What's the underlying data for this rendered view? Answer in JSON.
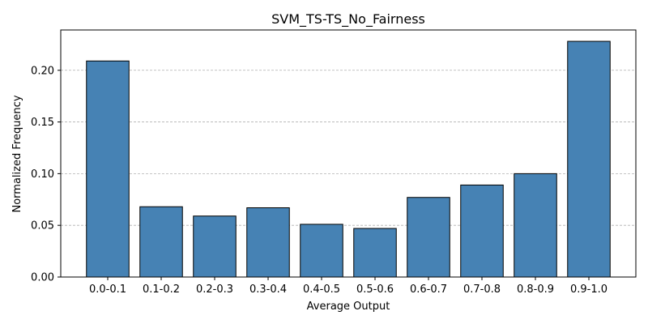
{
  "chart_data": {
    "type": "bar",
    "title": "SVM_TS-TS_No_Fairness",
    "xlabel": "Average Output",
    "ylabel": "Normalized Frequency",
    "categories": [
      "0.0-0.1",
      "0.1-0.2",
      "0.2-0.3",
      "0.3-0.4",
      "0.4-0.5",
      "0.5-0.6",
      "0.6-0.7",
      "0.7-0.8",
      "0.8-0.9",
      "0.9-1.0"
    ],
    "values": [
      0.209,
      0.068,
      0.059,
      0.067,
      0.051,
      0.047,
      0.077,
      0.089,
      0.1,
      0.228
    ],
    "ylim": [
      0,
      0.239
    ],
    "yticks": [
      "0.00",
      "0.05",
      "0.10",
      "0.15",
      "0.20"
    ],
    "grid": "y-dashed",
    "bar_color": "#4682b4",
    "legend": "none"
  }
}
